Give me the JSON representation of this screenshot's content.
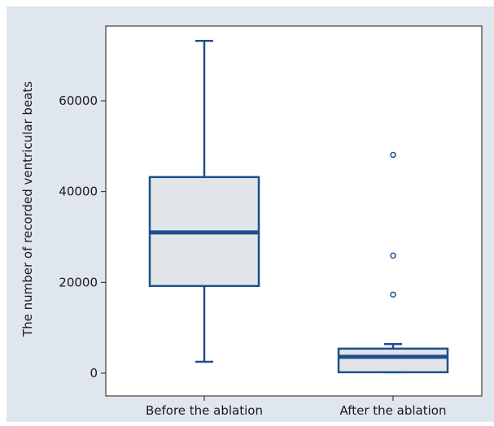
{
  "colors": {
    "frame_background": "#dfe6ee",
    "plot_background": "#ffffff",
    "box_stroke": "#1f4e8c",
    "box_fill": "#e2e5e8"
  },
  "chart_data": {
    "type": "box",
    "title": "",
    "xlabel": "",
    "ylabel": "The number of recorded ventricular beats",
    "ylim": [
      -1500,
      77000
    ],
    "yticks": [
      0,
      20000,
      40000,
      60000
    ],
    "ytick_labels": [
      "0",
      "20000",
      "40000",
      "60000"
    ],
    "grid": false,
    "legend": "none",
    "categories": [
      "Before the ablation",
      "After the ablation"
    ],
    "boxes": [
      {
        "category": "Before the ablation",
        "whisker_low": 2500,
        "q1": 19200,
        "median": 31000,
        "q3": 43200,
        "whisker_high": 73200,
        "outliers": []
      },
      {
        "category": "After the ablation",
        "whisker_low": 200,
        "q1": 200,
        "median": 3600,
        "q3": 5400,
        "whisker_high": 6400,
        "outliers": [
          17300,
          25900,
          48100
        ]
      }
    ]
  }
}
